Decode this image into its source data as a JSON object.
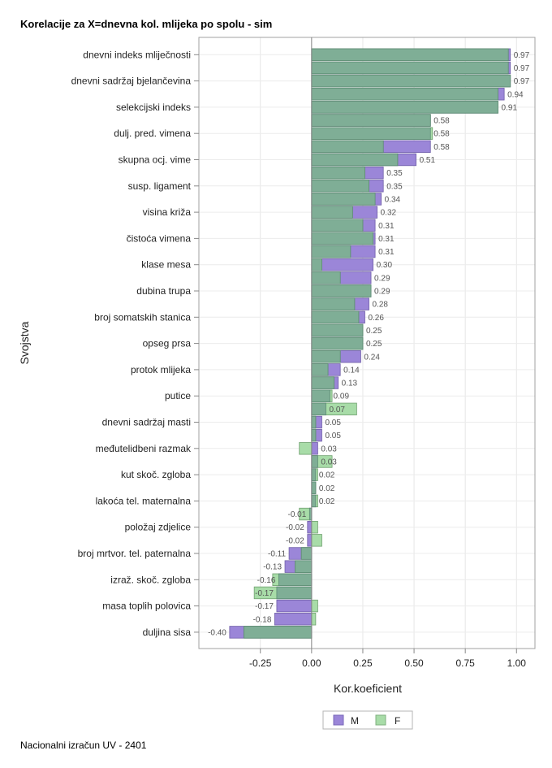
{
  "chart_data": {
    "type": "bar",
    "orientation": "horizontal",
    "title": "Korelacije za X=dnevna kol. mlijeka po spolu - sim",
    "xlabel": "Kor.koeficient",
    "ylabel": "Svojstva",
    "xlim": [
      -0.55,
      1.09
    ],
    "xticks": [
      -0.25,
      0.0,
      0.25,
      0.5,
      0.75,
      1.0
    ],
    "xtick_labels": [
      "-0.25",
      "0.00",
      "0.25",
      "0.50",
      "0.75",
      "1.00"
    ],
    "grid": true,
    "legend_position": "bottom",
    "series": [
      {
        "name": "M",
        "color": "#9b86d8"
      },
      {
        "name": "F",
        "color": "#a8dca8"
      }
    ],
    "overlap_color": "#7fae96",
    "categories": [
      "dnevni indeks mliječnosti",
      "dnevni sadržaj bjelančevina",
      "selekcijski indeks",
      "dulj. pred. vimena",
      "skupna ocj. vime",
      "susp. ligament",
      "visina križa",
      "čistoća vimena",
      "klase mesa",
      "dubina trupa",
      "broj somatskih stanica",
      "opseg prsa",
      "protok mlijeka",
      "putice",
      "dnevni sadržaj masti",
      "međutelidbeni razmak",
      "kut skoč. zgloba",
      "lakoća tel. maternalna",
      "položaj zdjelice",
      "broj mrtvor. tel. paternalna",
      "izraž. skoč. zgloba",
      "masa toplih polovica",
      "duljina sisa"
    ],
    "rows": [
      {
        "m": 0.97,
        "f": 0.96,
        "label": "0.97"
      },
      {
        "m": 0.97,
        "f": 0.96,
        "label": "0.97"
      },
      {
        "m": 0.97,
        "f": 0.97,
        "label": "0.97"
      },
      {
        "m": 0.94,
        "f": 0.91,
        "label": "0.94"
      },
      {
        "m": 0.91,
        "f": 0.91,
        "label": "0.91"
      },
      {
        "m": 0.58,
        "f": 0.58,
        "label": "0.58"
      },
      {
        "m": 0.58,
        "f": 0.59,
        "label": "0.58"
      },
      {
        "m": 0.58,
        "f": 0.35,
        "label": "0.58"
      },
      {
        "m": 0.51,
        "f": 0.42,
        "label": "0.51"
      },
      {
        "m": 0.35,
        "f": 0.26,
        "label": "0.35"
      },
      {
        "m": 0.35,
        "f": 0.28,
        "label": "0.35"
      },
      {
        "m": 0.34,
        "f": 0.31,
        "label": "0.34"
      },
      {
        "m": 0.32,
        "f": 0.2,
        "label": "0.32"
      },
      {
        "m": 0.31,
        "f": 0.25,
        "label": "0.31"
      },
      {
        "m": 0.31,
        "f": 0.3,
        "label": "0.31"
      },
      {
        "m": 0.31,
        "f": 0.19,
        "label": "0.31"
      },
      {
        "m": 0.3,
        "f": 0.05,
        "label": "0.30"
      },
      {
        "m": 0.29,
        "f": 0.14,
        "label": "0.29"
      },
      {
        "m": 0.29,
        "f": 0.29,
        "label": "0.29"
      },
      {
        "m": 0.28,
        "f": 0.21,
        "label": "0.28"
      },
      {
        "m": 0.26,
        "f": 0.23,
        "label": "0.26"
      },
      {
        "m": 0.25,
        "f": 0.25,
        "label": "0.25"
      },
      {
        "m": 0.25,
        "f": 0.25,
        "label": "0.25"
      },
      {
        "m": 0.24,
        "f": 0.14,
        "label": "0.24"
      },
      {
        "m": 0.14,
        "f": 0.08,
        "label": "0.14"
      },
      {
        "m": 0.13,
        "f": 0.11,
        "label": "0.13"
      },
      {
        "m": 0.09,
        "f": 0.1,
        "label": "0.09"
      },
      {
        "m": 0.07,
        "f": 0.22,
        "label": "0.07"
      },
      {
        "m": 0.05,
        "f": 0.02,
        "label": "0.05"
      },
      {
        "m": 0.05,
        "f": 0.02,
        "label": "0.05"
      },
      {
        "m": 0.03,
        "f": -0.06,
        "label": "0.03"
      },
      {
        "m": 0.03,
        "f": 0.1,
        "label": "0.03"
      },
      {
        "m": 0.02,
        "f": 0.03,
        "label": "0.02"
      },
      {
        "m": 0.02,
        "f": 0.02,
        "label": "0.02"
      },
      {
        "m": 0.02,
        "f": 0.03,
        "label": "0.02"
      },
      {
        "m": -0.01,
        "f": -0.06,
        "label": "-0.01"
      },
      {
        "m": -0.02,
        "f": 0.03,
        "label": "-0.02"
      },
      {
        "m": -0.02,
        "f": 0.05,
        "label": "-0.02"
      },
      {
        "m": -0.11,
        "f": -0.05,
        "label": "-0.11"
      },
      {
        "m": -0.13,
        "f": -0.08,
        "label": "-0.13"
      },
      {
        "m": -0.16,
        "f": -0.19,
        "label": "-0.16"
      },
      {
        "m": -0.17,
        "f": -0.28,
        "label": "-0.17"
      },
      {
        "m": -0.17,
        "f": 0.03,
        "label": "-0.17"
      },
      {
        "m": -0.18,
        "f": 0.02,
        "label": "-0.18"
      },
      {
        "m": -0.4,
        "f": -0.33,
        "label": "-0.40"
      }
    ],
    "category_row_index": [
      0,
      2,
      4,
      6,
      8,
      10,
      12,
      14,
      16,
      18,
      20,
      22,
      24,
      26,
      28,
      30,
      32,
      34,
      36,
      38,
      40,
      42,
      44
    ]
  },
  "footnote": "Nacionalni izračun UV - 2401"
}
